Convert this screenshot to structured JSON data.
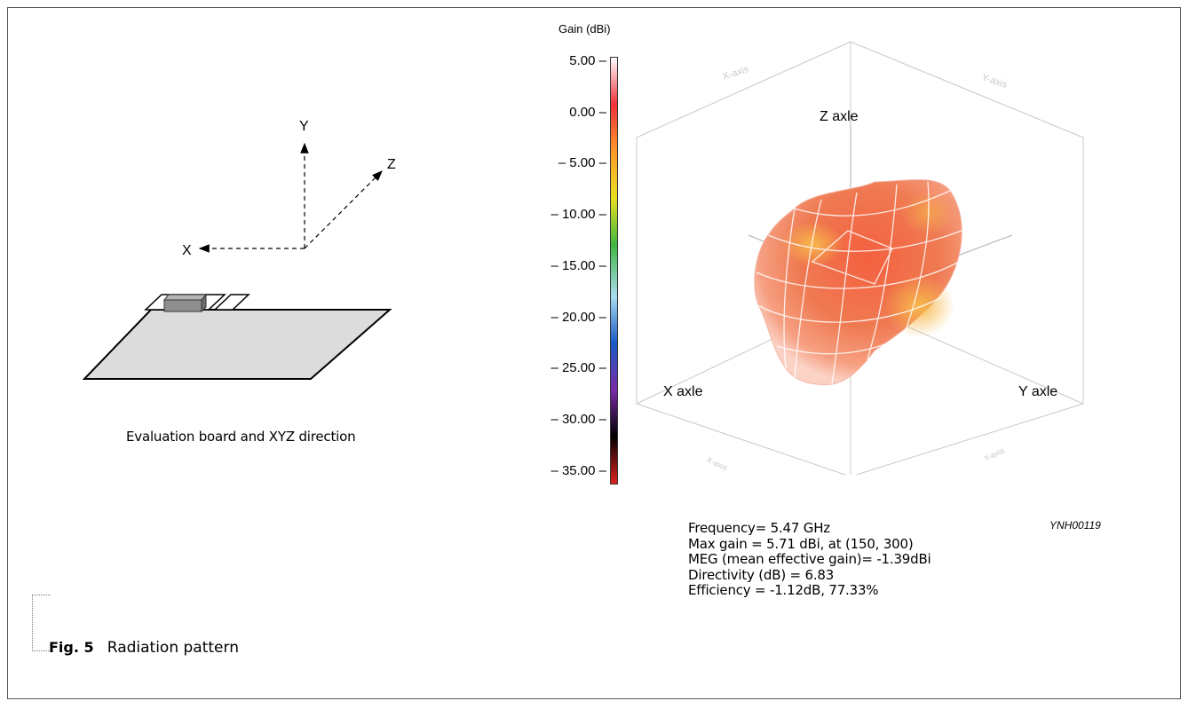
{
  "left_diagram": {
    "axes": {
      "x": "X",
      "y": "Y",
      "z": "Z"
    },
    "caption": "Evaluation board and XYZ direction"
  },
  "colorbar": {
    "title": "Gain (dBi)",
    "ticks": [
      "5.00 –",
      "0.00 –",
      "– 5.00 –",
      "– 10.00 –",
      "– 15.00 –",
      "– 20.00 –",
      "– 25.00 –",
      "– 30.00 –",
      "– 35.00 –"
    ],
    "colors": [
      "#ffffff",
      "#f0303a",
      "#ff9a2a",
      "#e8e020",
      "#40b840",
      "#a8dcf0",
      "#1a5cc8",
      "#7a2aa8",
      "#000000",
      "#e02020"
    ]
  },
  "plot3d": {
    "z_axis_label": "Z axle",
    "x_axis_label": "X axle",
    "y_axis_label": "Y axle",
    "faint_labels": [
      "X-axis",
      "Y-axis",
      "X-axis",
      "Y-axis"
    ]
  },
  "info": {
    "frequency": "Frequency= 5.47 GHz",
    "max_gain": "Max gain = 5.71 dBi, at (150, 300)",
    "meg": "MEG (mean effective gain)= -1.39dBi",
    "directivity": "Directivity (dB) = 6.83",
    "efficiency": "Efficiency = -1.12dB, 77.33%"
  },
  "code": "YNH00119",
  "figure": {
    "number": "Fig. 5",
    "title": "Radiation pattern"
  }
}
